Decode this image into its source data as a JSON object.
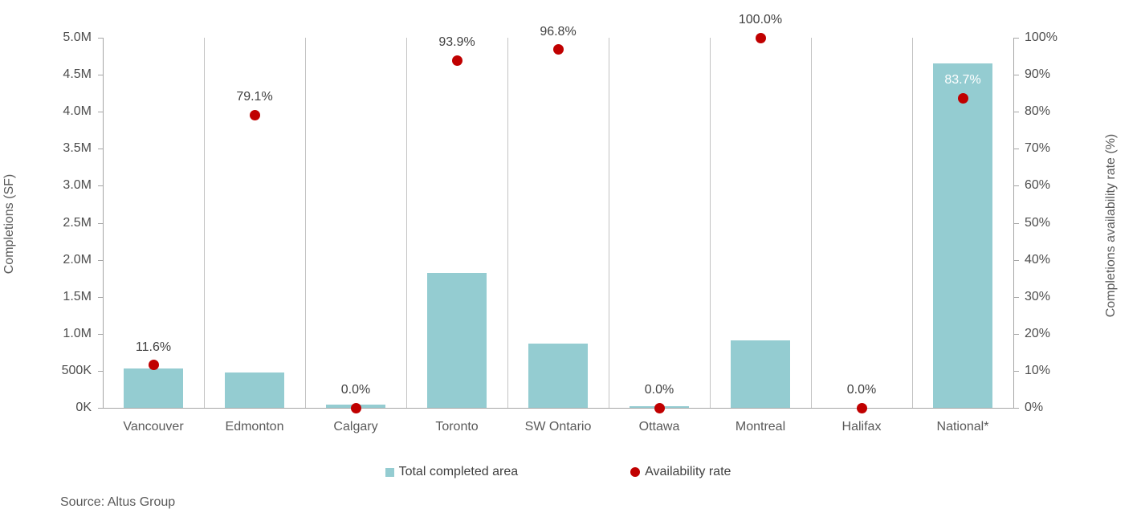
{
  "chart_data": {
    "type": "bar",
    "subtype": "combo-bar-scatter-dual-axis",
    "categories": [
      "Vancouver",
      "Edmonton",
      "Calgary",
      "Toronto",
      "SW Ontario",
      "Ottawa",
      "Montreal",
      "Halifax",
      "National*"
    ],
    "series": [
      {
        "name": "Total completed area",
        "type": "bar",
        "axis": "left",
        "values": [
          530000,
          475000,
          40000,
          1820000,
          870000,
          20000,
          910000,
          0,
          4650000
        ]
      },
      {
        "name": "Availability rate",
        "type": "scatter",
        "axis": "right",
        "values": [
          11.6,
          79.1,
          0.0,
          93.9,
          96.8,
          0.0,
          100.0,
          0.0,
          83.7
        ],
        "point_labels": [
          "11.6%",
          "79.1%",
          "0.0%",
          "93.9%",
          "96.8%",
          "0.0%",
          "100.0%",
          "0.0%",
          "83.7%"
        ],
        "point_label_colors": [
          "#404040",
          "#404040",
          "#404040",
          "#404040",
          "#404040",
          "#404040",
          "#404040",
          "#404040",
          "#ffffff"
        ]
      }
    ],
    "left_axis": {
      "title": "Completions (SF)",
      "min": 0,
      "max": 5000000,
      "tick_labels": [
        "0K",
        "500K",
        "1.0M",
        "1.5M",
        "2.0M",
        "2.5M",
        "3.0M",
        "3.5M",
        "4.0M",
        "4.5M",
        "5.0M"
      ]
    },
    "right_axis": {
      "title": "Completions availability rate (%)",
      "min": 0,
      "max": 100,
      "tick_labels": [
        "0%",
        "10%",
        "20%",
        "30%",
        "40%",
        "50%",
        "60%",
        "70%",
        "80%",
        "90%",
        "100%"
      ]
    },
    "legend": [
      {
        "label": "Total completed area",
        "marker": "square",
        "color": "#94ccd1"
      },
      {
        "label": "Availability rate",
        "marker": "circle",
        "color": "#c00000"
      }
    ],
    "grid": "vertical category separators only",
    "legend_position": "bottom-center",
    "source": "Source: Altus Group",
    "colors": {
      "bar_fill": "#94ccd1",
      "dot_fill": "#c00000",
      "axis_line": "#a6a6a6",
      "gridline": "#c3c3c3",
      "text": "#4d4d4d"
    }
  }
}
